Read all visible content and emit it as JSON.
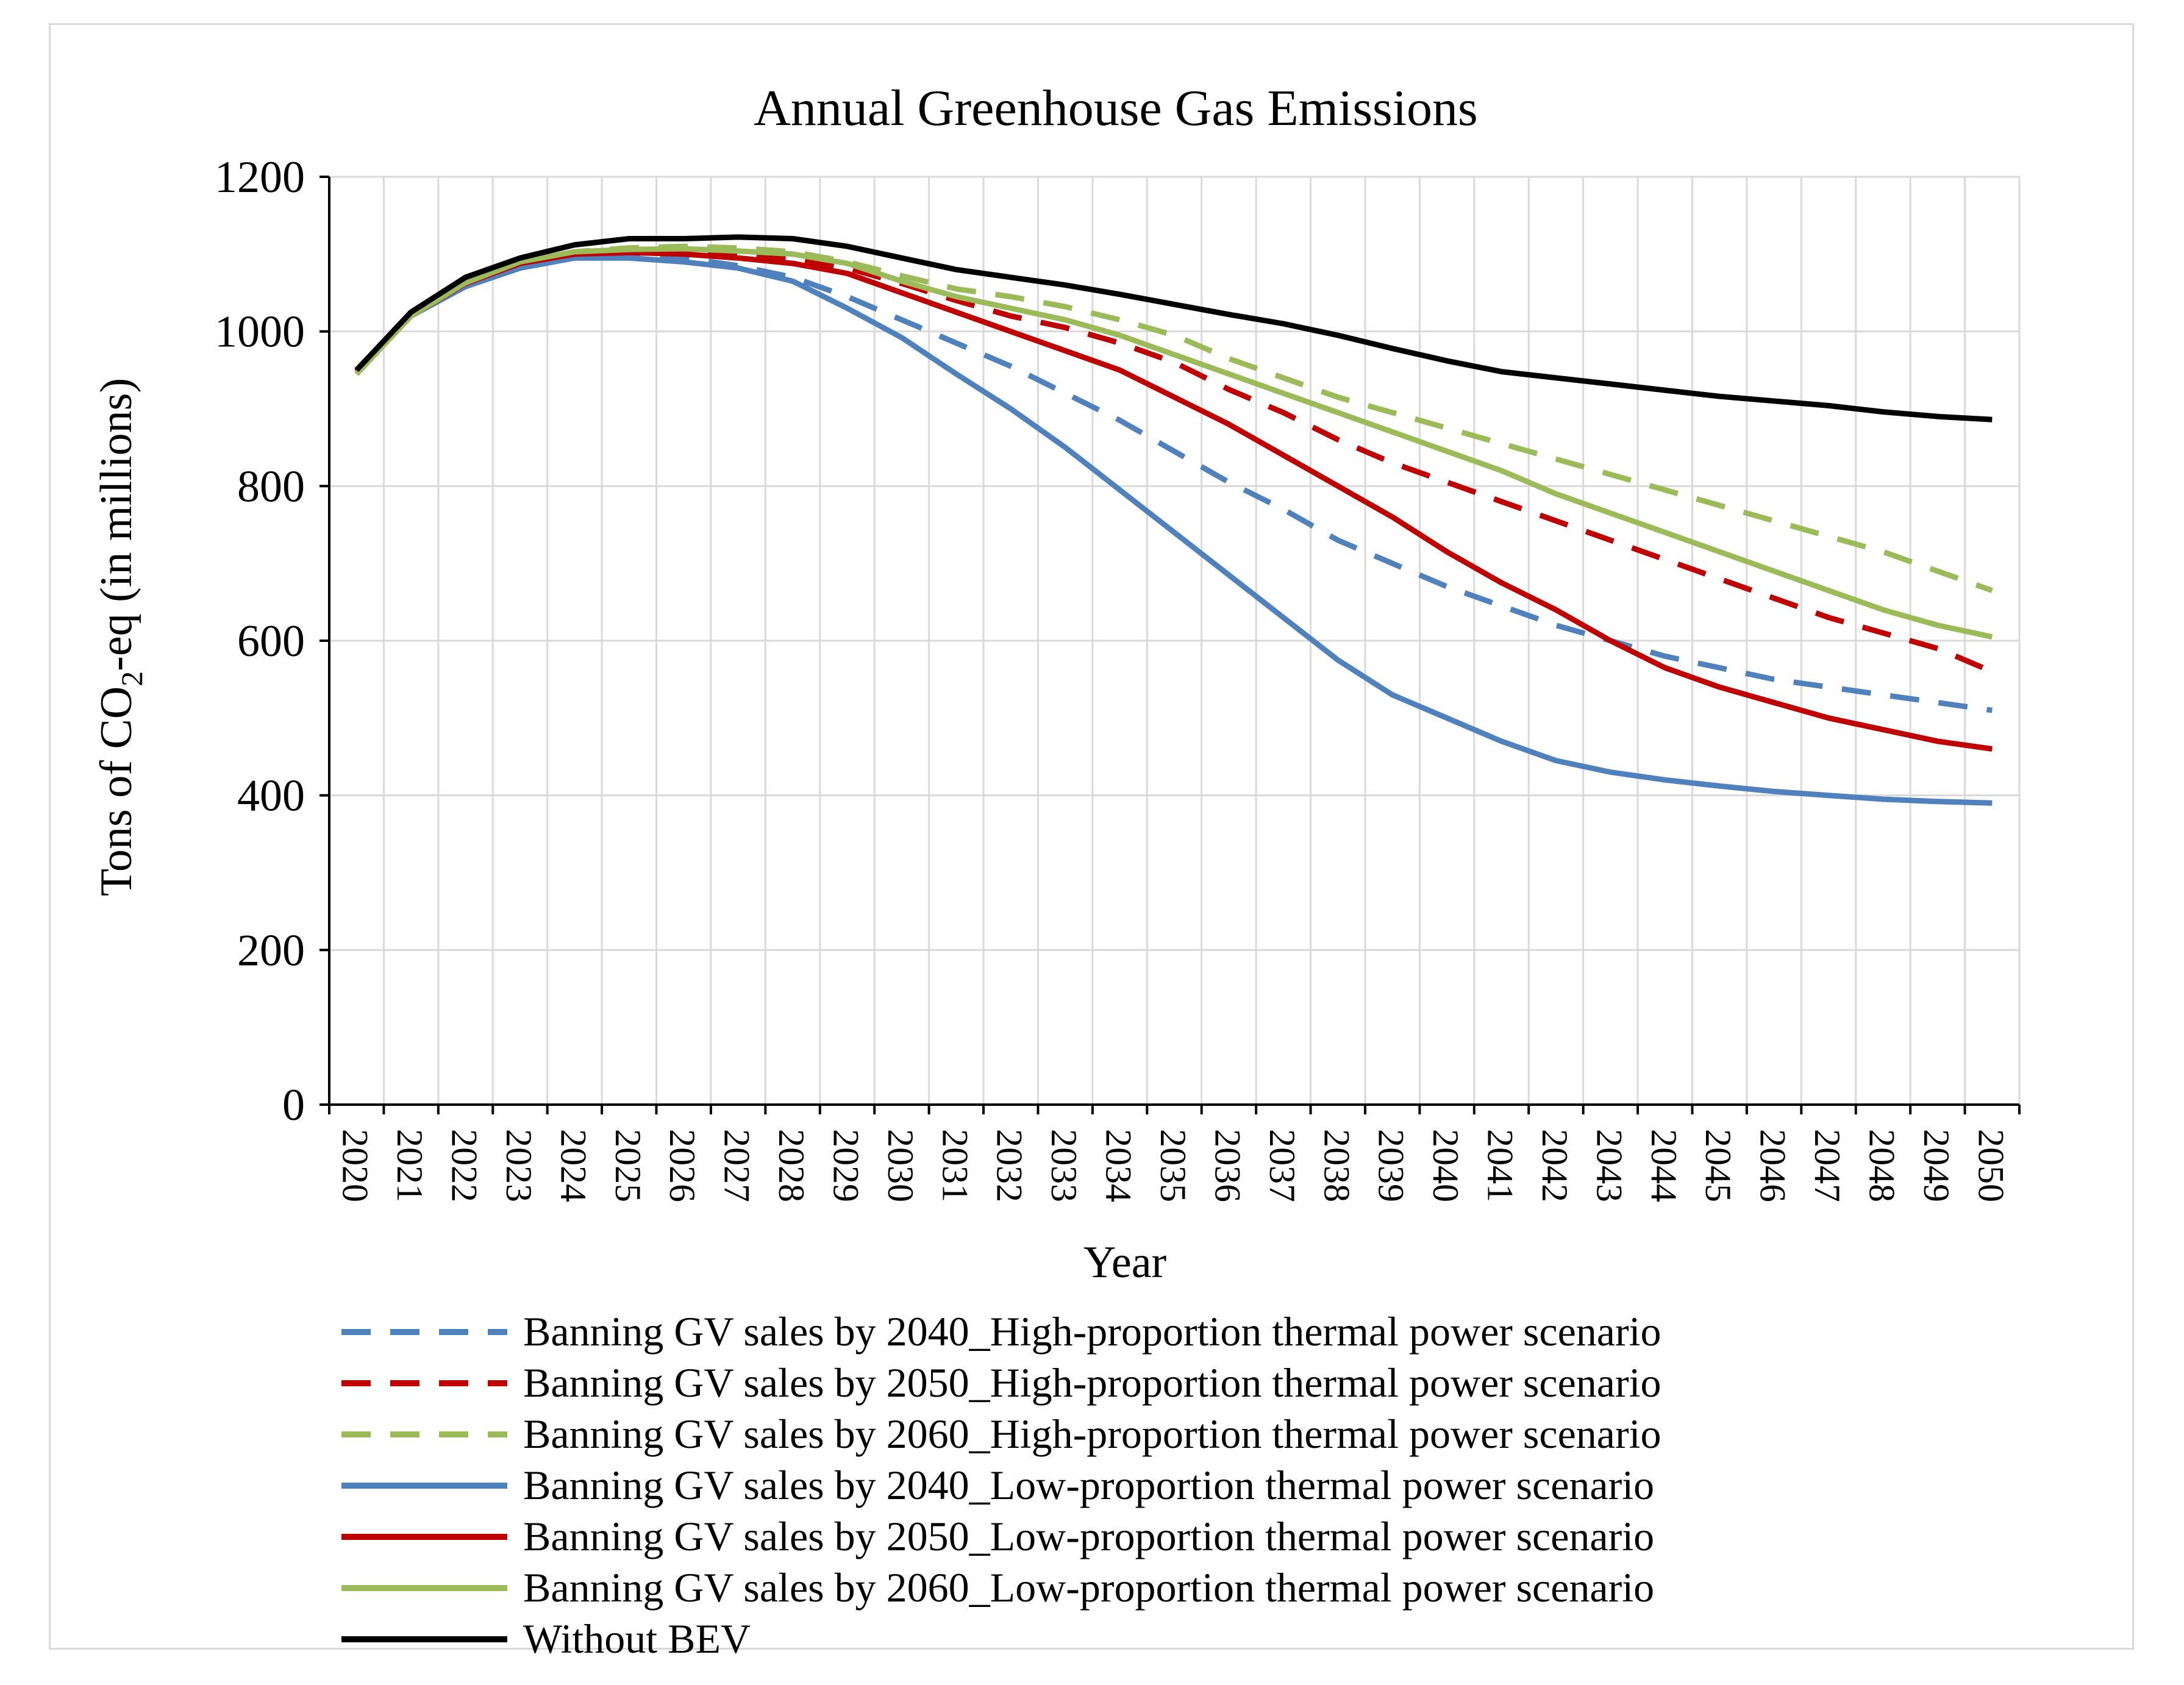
{
  "chart_data": {
    "type": "line",
    "title": "Annual Greenhouse Gas Emissions",
    "xlabel": "Year",
    "ylabel_prefix": "Tons of CO",
    "ylabel_sub": "2",
    "ylabel_suffix": "-eq (in millions)",
    "ylim": [
      0,
      1200
    ],
    "yticks": [
      0,
      200,
      400,
      600,
      800,
      1000,
      1200
    ],
    "x": [
      2020,
      2021,
      2022,
      2023,
      2024,
      2025,
      2026,
      2027,
      2028,
      2029,
      2030,
      2031,
      2032,
      2033,
      2034,
      2035,
      2036,
      2037,
      2038,
      2039,
      2040,
      2041,
      2042,
      2043,
      2044,
      2045,
      2046,
      2047,
      2048,
      2049,
      2050
    ],
    "grid": true,
    "legend_position": "bottom",
    "series": [
      {
        "name": "Banning GV sales by 2040_High-proportion thermal power scenario",
        "color": "#4f81bd",
        "dash": true,
        "values": [
          945,
          1020,
          1060,
          1085,
          1100,
          1100,
          1095,
          1085,
          1070,
          1045,
          1015,
          985,
          955,
          920,
          885,
          845,
          805,
          770,
          730,
          700,
          670,
          645,
          620,
          600,
          580,
          565,
          550,
          540,
          530,
          520,
          510
        ]
      },
      {
        "name": "Banning GV sales by 2050_High-proportion thermal power scenario",
        "color": "#c00000",
        "dash": true,
        "values": [
          945,
          1020,
          1062,
          1088,
          1102,
          1105,
          1105,
          1102,
          1095,
          1082,
          1062,
          1040,
          1020,
          1005,
          985,
          960,
          925,
          895,
          860,
          830,
          805,
          780,
          755,
          730,
          705,
          680,
          655,
          630,
          610,
          590,
          560
        ]
      },
      {
        "name": "Banning GV sales by 2060_High-proportion thermal power scenario",
        "color": "#9bbb59",
        "dash": true,
        "values": [
          945,
          1020,
          1063,
          1090,
          1103,
          1108,
          1110,
          1108,
          1103,
          1090,
          1072,
          1055,
          1045,
          1032,
          1015,
          995,
          965,
          940,
          915,
          895,
          875,
          855,
          835,
          815,
          795,
          775,
          755,
          735,
          715,
          690,
          665
        ]
      },
      {
        "name": "Banning GV sales by 2040_Low-proportion thermal power scenario",
        "color": "#4f81bd",
        "dash": false,
        "values": [
          950,
          1020,
          1058,
          1082,
          1095,
          1095,
          1090,
          1082,
          1065,
          1030,
          992,
          945,
          900,
          850,
          795,
          740,
          685,
          630,
          575,
          530,
          500,
          470,
          445,
          430,
          420,
          412,
          405,
          400,
          395,
          392,
          390
        ]
      },
      {
        "name": "Banning GV sales by 2050_Low-proportion thermal power scenario",
        "color": "#c00000",
        "dash": false,
        "values": [
          948,
          1020,
          1062,
          1088,
          1100,
          1102,
          1100,
          1095,
          1088,
          1075,
          1050,
          1025,
          1000,
          975,
          950,
          915,
          880,
          840,
          800,
          760,
          715,
          675,
          640,
          600,
          565,
          540,
          520,
          500,
          485,
          470,
          460
        ]
      },
      {
        "name": "Banning GV sales by 2060_Low-proportion thermal power scenario",
        "color": "#9bbb59",
        "dash": false,
        "values": [
          945,
          1020,
          1063,
          1090,
          1103,
          1106,
          1107,
          1104,
          1100,
          1088,
          1065,
          1045,
          1030,
          1015,
          995,
          970,
          945,
          920,
          895,
          870,
          845,
          820,
          790,
          765,
          740,
          715,
          690,
          665,
          640,
          620,
          605
        ]
      },
      {
        "name": "Without BEV",
        "color": "#000000",
        "dash": false,
        "values": [
          950,
          1025,
          1070,
          1095,
          1112,
          1120,
          1120,
          1122,
          1120,
          1110,
          1095,
          1080,
          1070,
          1060,
          1048,
          1035,
          1022,
          1010,
          995,
          978,
          962,
          948,
          940,
          932,
          924,
          916,
          910,
          904,
          896,
          890,
          886
        ]
      }
    ]
  }
}
